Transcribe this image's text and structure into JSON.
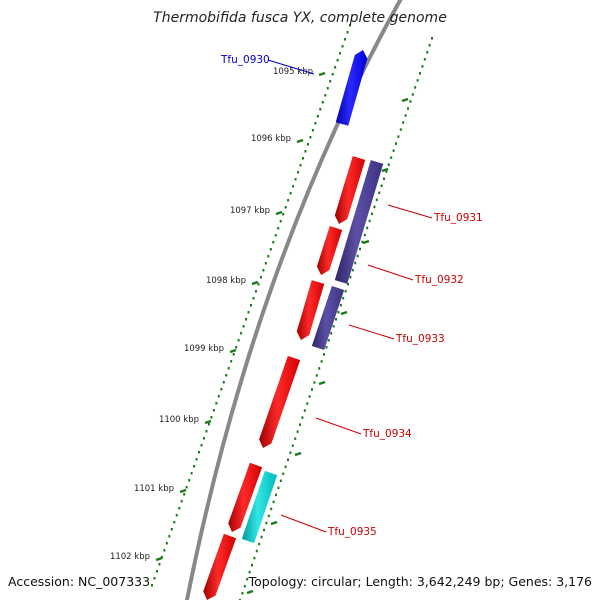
{
  "title": "Thermobifida fusca YX, complete genome",
  "accession": "Accession: NC_007333",
  "topology": "Topology: circular; Length: 3,642,249 bp; Genes: 3,176",
  "ticks": [
    {
      "label": "1095 kbp"
    },
    {
      "label": "1096 kbp"
    },
    {
      "label": "1097 kbp"
    },
    {
      "label": "1098 kbp"
    },
    {
      "label": "1099 kbp"
    },
    {
      "label": "1100 kbp"
    },
    {
      "label": "1101 kbp"
    },
    {
      "label": "1102 kbp"
    }
  ],
  "gene_labels": [
    {
      "text": "Tfu_0930",
      "color": "#0000cc"
    },
    {
      "text": "Tfu_0931",
      "color": "#cc0000"
    },
    {
      "text": "Tfu_0932",
      "color": "#cc0000"
    },
    {
      "text": "Tfu_0933",
      "color": "#cc0000"
    },
    {
      "text": "Tfu_0934",
      "color": "#cc0000"
    },
    {
      "text": "Tfu_0935",
      "color": "#cc0000"
    }
  ],
  "colors": {
    "backbone": "#888888",
    "gene_red": "#ff0000",
    "gene_blue": "#0000ff",
    "gene_purple": "#4b3f8c",
    "gene_cyan": "#00cccc",
    "ruler_green": "#1a7a1a"
  }
}
